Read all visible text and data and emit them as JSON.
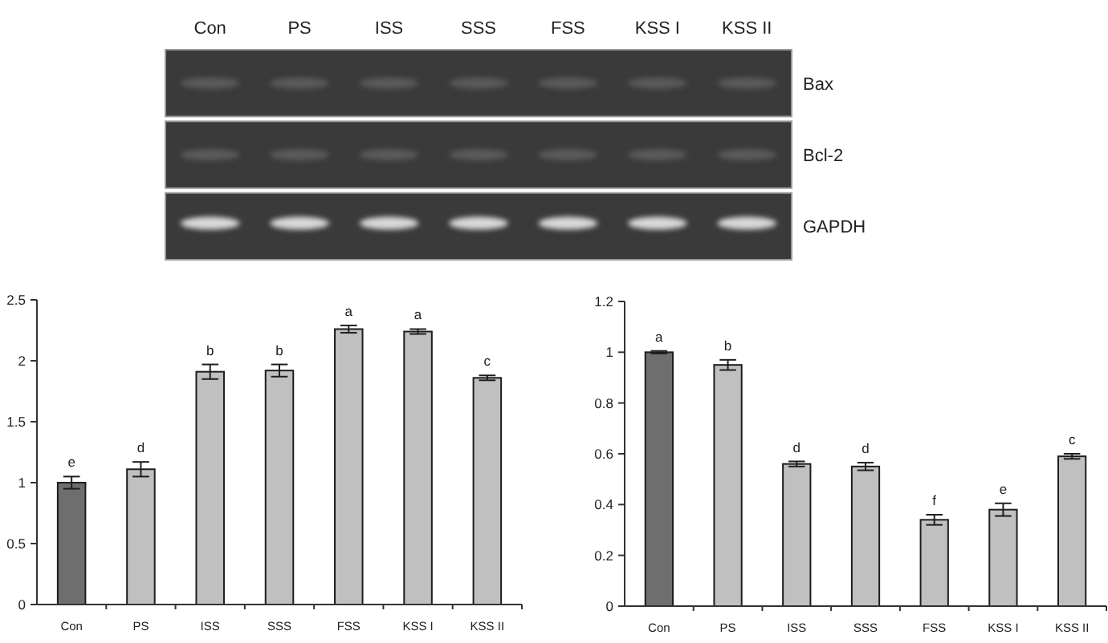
{
  "chart_data": [
    {
      "type": "other",
      "categories": [
        "Con",
        "PS",
        "ISS",
        "SSS",
        "FSS",
        "KSS I",
        "KSS II"
      ],
      "y_categories": [
        "Bax",
        "Bcl-2",
        "GAPDH"
      ]
    },
    {
      "type": "bar",
      "categories": [
        "Con",
        "PS",
        "ISS",
        "SSS",
        "FSS",
        "KSS I",
        "KSS II"
      ],
      "values": [
        1.0,
        1.11,
        1.91,
        1.92,
        2.26,
        2.24,
        1.86
      ],
      "errors": [
        0.05,
        0.06,
        0.06,
        0.05,
        0.03,
        0.02,
        0.02
      ],
      "colors": [
        "#6e6e6e",
        "#c0c0c0",
        "#c0c0c0",
        "#c0c0c0",
        "#c0c0c0",
        "#c0c0c0",
        "#c0c0c0"
      ],
      "ylim": [
        0,
        2.5
      ],
      "yticks": [
        0,
        0.5,
        1,
        1.5,
        2,
        2.5
      ],
      "annotations": [
        {
          "text": "e",
          "x": "Con",
          "y": 1.05
        },
        {
          "text": "d",
          "x": "PS",
          "y": 1.17
        },
        {
          "text": "b",
          "x": "ISS",
          "y": 1.97
        },
        {
          "text": "b",
          "x": "SSS",
          "y": 1.97
        },
        {
          "text": "a",
          "x": "FSS",
          "y": 2.29
        },
        {
          "text": "a",
          "x": "KSS I",
          "y": 2.26
        },
        {
          "text": "c",
          "x": "KSS II",
          "y": 1.88
        }
      ]
    },
    {
      "type": "bar",
      "categories": [
        "Con",
        "PS",
        "ISS",
        "SSS",
        "FSS",
        "KSS I",
        "KSS II"
      ],
      "values": [
        1.0,
        0.95,
        0.56,
        0.55,
        0.34,
        0.38,
        0.59
      ],
      "errors": [
        0.005,
        0.02,
        0.01,
        0.015,
        0.02,
        0.025,
        0.01
      ],
      "colors": [
        "#6e6e6e",
        "#c0c0c0",
        "#c0c0c0",
        "#c0c0c0",
        "#c0c0c0",
        "#c0c0c0",
        "#c0c0c0"
      ],
      "ylim": [
        0,
        1.2
      ],
      "yticks": [
        0,
        0.2,
        0.4,
        0.6,
        0.8,
        1,
        1.2
      ],
      "annotations": [
        {
          "text": "a",
          "x": "Con",
          "y": 1.005
        },
        {
          "text": "b",
          "x": "PS",
          "y": 0.97
        },
        {
          "text": "d",
          "x": "ISS",
          "y": 0.57
        },
        {
          "text": "d",
          "x": "SSS",
          "y": 0.565
        },
        {
          "text": "f",
          "x": "FSS",
          "y": 0.36
        },
        {
          "text": "e",
          "x": "KSS I",
          "y": 0.405
        },
        {
          "text": "c",
          "x": "KSS II",
          "y": 0.6
        }
      ]
    }
  ]
}
